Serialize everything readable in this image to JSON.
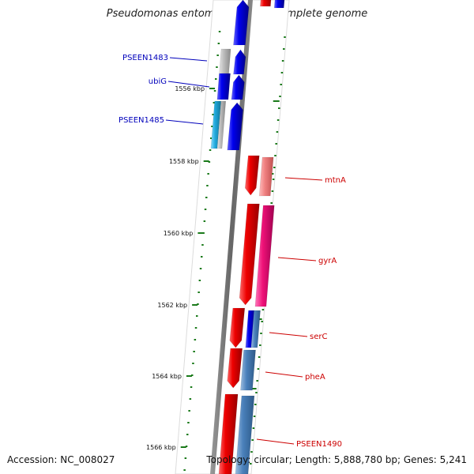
{
  "title": "Pseudomonas entomophila L48, complete genome",
  "accession": "Accession: NC_008027",
  "summary": "Topology: circular; Length: 5,888,780 bp; Genes: 5,241",
  "colors": {
    "forward_cds": "#0000ee",
    "reverse_cds": "#ee0000",
    "light_blue": "#22aadd",
    "steel_blue": "#4a80bb",
    "pink": "#ee1177",
    "light_red": "#f08080",
    "gray": "#b8b8b8",
    "backbone": "#777777",
    "tick": "#1a7a1a",
    "label_fwd": "#0000bb",
    "label_rev": "#cc0000"
  },
  "scale_labels": [
    "1556 kbp",
    "1558 kbp",
    "1560 kbp",
    "1562 kbp",
    "1564 kbp",
    "1566 kbp"
  ],
  "gene_labels": [
    {
      "text": "PSEEN1483",
      "strand": "forward"
    },
    {
      "text": "ubiG",
      "strand": "forward"
    },
    {
      "text": "PSEEN1485",
      "strand": "forward"
    },
    {
      "text": "mtnA",
      "strand": "reverse"
    },
    {
      "text": "gyrA",
      "strand": "reverse"
    },
    {
      "text": "serC",
      "strand": "reverse"
    },
    {
      "text": "pheA",
      "strand": "reverse"
    },
    {
      "text": "PSEEN1490",
      "strand": "reverse"
    }
  ]
}
